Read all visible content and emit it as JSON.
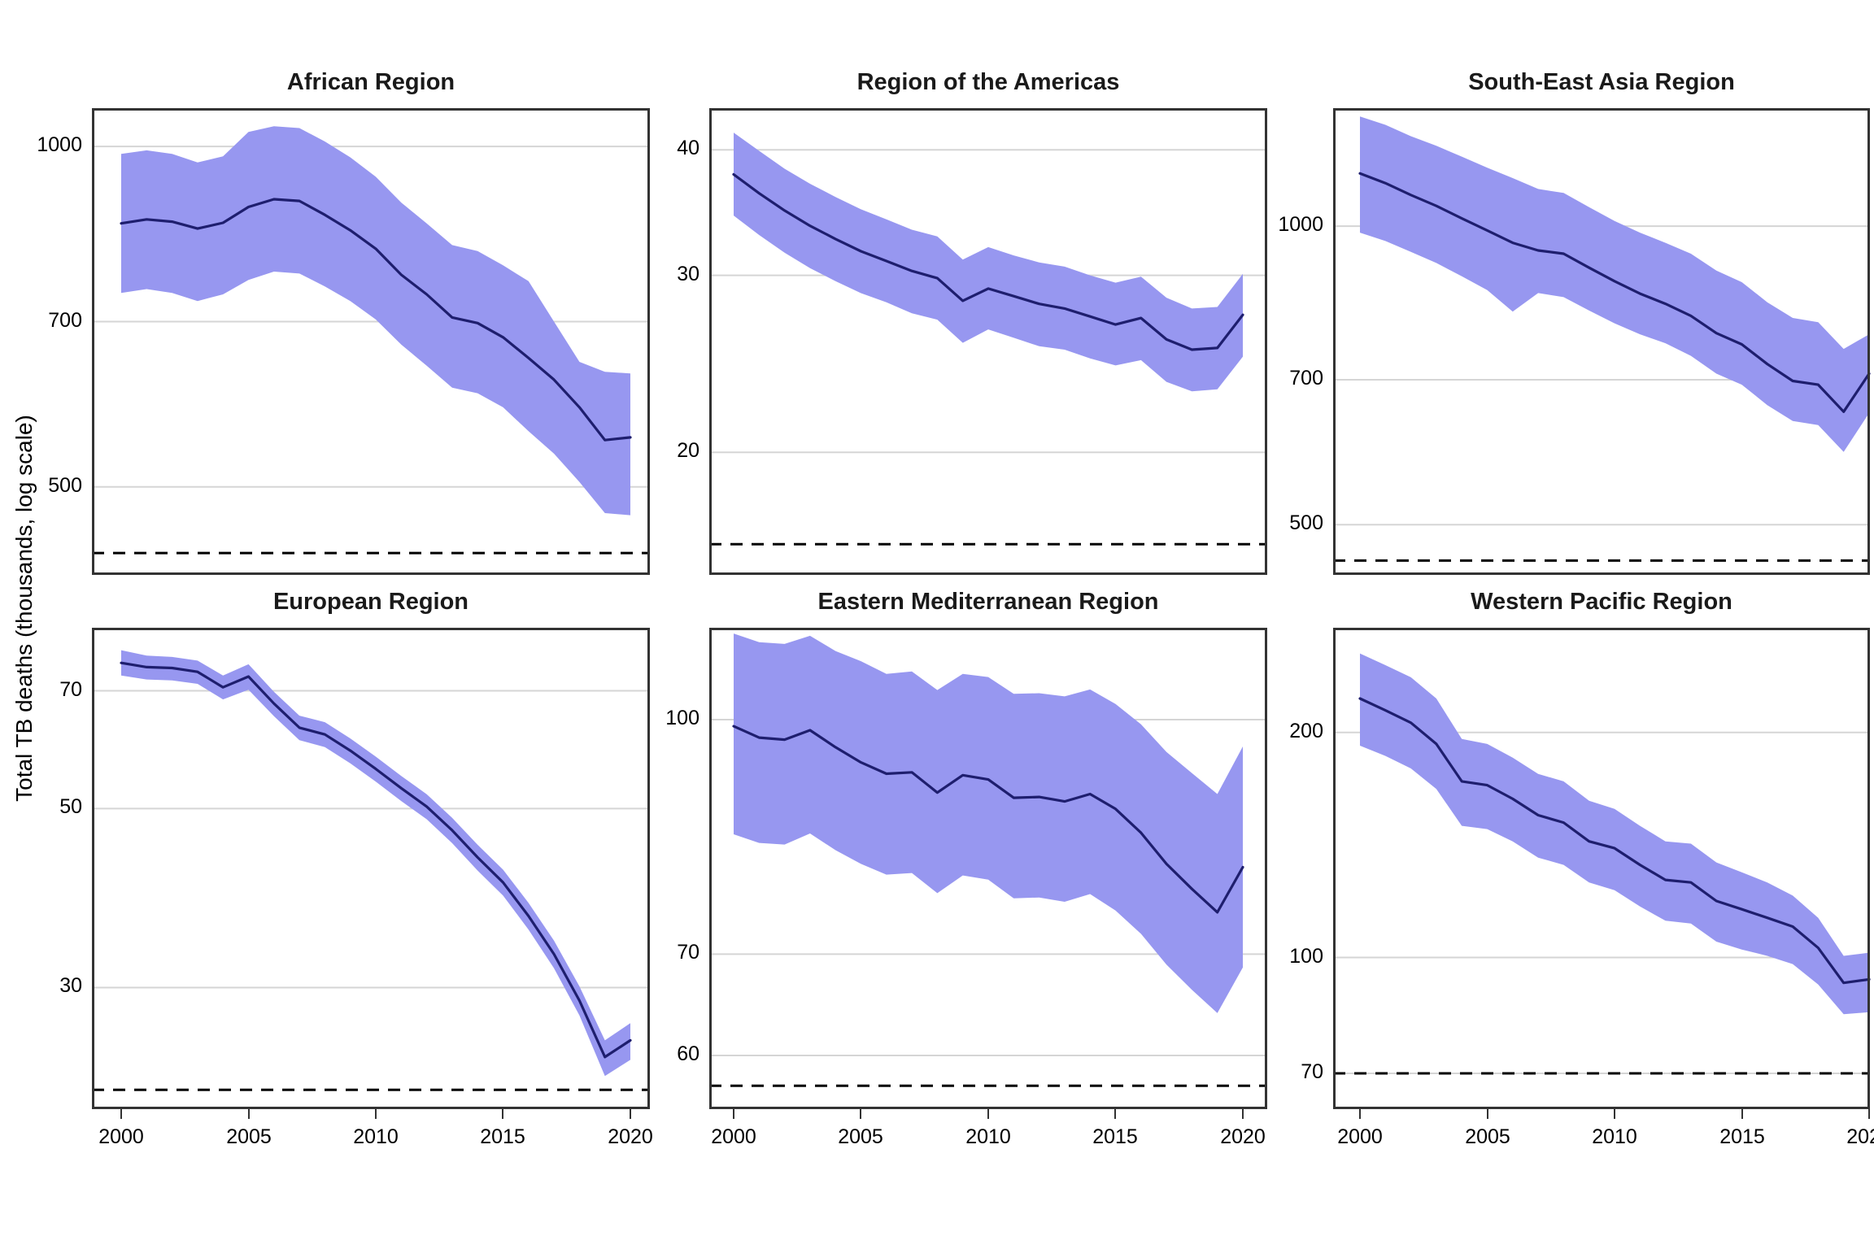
{
  "figure": {
    "y_axis_label": "Total TB deaths (thousands, log scale)",
    "x_tick_labels": [
      "2000",
      "2005",
      "2010",
      "2015",
      "2020"
    ],
    "colors": {
      "ribbon": "#9797F0",
      "line": "#1E1E6E",
      "gridline": "#D5D5D5",
      "panel_border": "#333333",
      "dashed_milestone": "#000000",
      "background": "#FFFFFF",
      "text": "#000000"
    }
  },
  "chart_data": [
    {
      "type": "line",
      "title": "African Region",
      "ylabel": "Total TB deaths (thousands, log scale)",
      "x": [
        2000,
        2001,
        2002,
        2003,
        2004,
        2005,
        2006,
        2007,
        2008,
        2009,
        2010,
        2011,
        2012,
        2013,
        2014,
        2015,
        2016,
        2017,
        2018,
        2019,
        2020
      ],
      "values": [
        855,
        862,
        858,
        846,
        856,
        884,
        898,
        895,
        870,
        843,
        812,
        770,
        740,
        706,
        698,
        678,
        650,
        622,
        588,
        550,
        553
      ],
      "ci_upper": [
        985,
        992,
        985,
        968,
        980,
        1030,
        1042,
        1038,
        1010,
        978,
        940,
        892,
        855,
        818,
        808,
        785,
        760,
        700,
        645,
        632,
        630
      ],
      "ci_lower": [
        742,
        748,
        742,
        730,
        740,
        762,
        775,
        772,
        752,
        730,
        703,
        668,
        640,
        612,
        605,
        588,
        560,
        535,
        505,
        474,
        472
      ],
      "dashed_milestone_value": 437,
      "y_domain": [
        418,
        1081
      ],
      "y_gridlines": [
        {
          "value": 1000,
          "label": "1000"
        },
        {
          "value": 700,
          "label": "700"
        },
        {
          "value": 500,
          "label": "500"
        }
      ],
      "grid": true,
      "legend": "none"
    },
    {
      "type": "line",
      "title": "Region of the Americas",
      "ylabel": "Total TB deaths (thousands, log scale)",
      "x": [
        2000,
        2001,
        2002,
        2003,
        2004,
        2005,
        2006,
        2007,
        2008,
        2009,
        2010,
        2011,
        2012,
        2013,
        2014,
        2015,
        2016,
        2017,
        2018,
        2019,
        2020
      ],
      "values": [
        37.8,
        36.2,
        34.8,
        33.6,
        32.6,
        31.7,
        31.0,
        30.3,
        29.8,
        28.3,
        29.1,
        28.6,
        28.1,
        27.8,
        27.3,
        26.8,
        27.2,
        25.9,
        25.3,
        25.4,
        27.4
      ],
      "ci_upper": [
        41.6,
        39.9,
        38.3,
        37.0,
        35.9,
        34.9,
        34.1,
        33.3,
        32.8,
        31.1,
        32.0,
        31.4,
        30.9,
        30.6,
        30.0,
        29.5,
        29.9,
        28.5,
        27.8,
        27.9,
        30.1
      ],
      "ci_lower": [
        34.4,
        32.9,
        31.6,
        30.5,
        29.6,
        28.8,
        28.2,
        27.5,
        27.1,
        25.7,
        26.5,
        26.0,
        25.5,
        25.3,
        24.8,
        24.4,
        24.7,
        23.5,
        23.0,
        23.1,
        24.9
      ],
      "dashed_milestone_value": 16.2,
      "y_domain": [
        15.1,
        44.0
      ],
      "y_gridlines": [
        {
          "value": 40,
          "label": "40"
        },
        {
          "value": 30,
          "label": "30"
        },
        {
          "value": 20,
          "label": "20"
        }
      ],
      "grid": true,
      "legend": "none"
    },
    {
      "type": "line",
      "title": "South-East Asia Region",
      "ylabel": "Total TB deaths (thousands, log scale)",
      "x": [
        2000,
        2001,
        2002,
        2003,
        2004,
        2005,
        2006,
        2007,
        2008,
        2009,
        2010,
        2011,
        2012,
        2013,
        2014,
        2015,
        2016,
        2017,
        2018,
        2019,
        2020
      ],
      "values": [
        1130,
        1105,
        1075,
        1048,
        1018,
        990,
        962,
        945,
        938,
        908,
        880,
        855,
        835,
        812,
        780,
        760,
        726,
        698,
        692,
        650,
        710
      ],
      "ci_upper": [
        1290,
        1265,
        1232,
        1205,
        1175,
        1145,
        1118,
        1090,
        1080,
        1045,
        1012,
        985,
        962,
        938,
        902,
        878,
        838,
        808,
        800,
        752,
        778
      ],
      "ci_lower": [
        985,
        966,
        942,
        918,
        890,
        862,
        820,
        856,
        848,
        822,
        798,
        778,
        762,
        740,
        710,
        692,
        660,
        636,
        630,
        592,
        648
      ],
      "dashed_milestone_value": 460,
      "y_domain": [
        445,
        1315
      ],
      "y_gridlines": [
        {
          "value": 1000,
          "label": "1000"
        },
        {
          "value": 700,
          "label": "700"
        },
        {
          "value": 500,
          "label": "500"
        }
      ],
      "grid": true,
      "legend": "none"
    },
    {
      "type": "line",
      "title": "European Region",
      "ylabel": "Total TB deaths (thousands, log scale)",
      "x": [
        2000,
        2001,
        2002,
        2003,
        2004,
        2005,
        2006,
        2007,
        2008,
        2009,
        2010,
        2011,
        2012,
        2013,
        2014,
        2015,
        2016,
        2017,
        2018,
        2019,
        2020
      ],
      "values": [
        75.8,
        74.9,
        74.7,
        73.9,
        70.7,
        72.9,
        67.5,
        63.0,
        61.8,
        59.0,
        56.0,
        53.0,
        50.3,
        47.0,
        43.5,
        40.5,
        36.8,
        33.0,
        28.9,
        24.6,
        25.8
      ],
      "ci_upper": [
        78.6,
        77.4,
        77.1,
        76.3,
        73.1,
        75.5,
        69.8,
        65.2,
        64.0,
        61.1,
        58.0,
        54.9,
        52.1,
        48.7,
        45.1,
        42.0,
        38.2,
        34.3,
        30.1,
        25.8,
        27.1
      ],
      "ci_lower": [
        73.1,
        72.3,
        72.1,
        71.4,
        68.3,
        70.2,
        65.1,
        60.8,
        59.6,
        56.9,
        54.0,
        51.1,
        48.5,
        45.3,
        41.9,
        39.0,
        35.4,
        31.7,
        27.7,
        23.3,
        24.4
      ],
      "dashed_milestone_value": 22.4,
      "y_domain": [
        21.2,
        83.8
      ],
      "y_gridlines": [
        {
          "value": 70,
          "label": "70"
        },
        {
          "value": 50,
          "label": "50"
        },
        {
          "value": 30,
          "label": "30"
        }
      ],
      "grid": true,
      "legend": "none"
    },
    {
      "type": "line",
      "title": "Eastern Mediterranean Region",
      "ylabel": "Total TB deaths (thousands, log scale)",
      "x": [
        2000,
        2001,
        2002,
        2003,
        2004,
        2005,
        2006,
        2007,
        2008,
        2009,
        2010,
        2011,
        2012,
        2013,
        2014,
        2015,
        2016,
        2017,
        2018,
        2019,
        2020
      ],
      "values": [
        99.0,
        97.3,
        97.0,
        98.4,
        95.9,
        93.7,
        92.1,
        92.3,
        89.5,
        91.9,
        91.3,
        88.8,
        88.9,
        88.3,
        89.3,
        87.3,
        84.2,
        80.3,
        77.3,
        74.6,
        79.9
      ],
      "ci_upper": [
        114,
        112.5,
        112.2,
        113.6,
        111.0,
        109.3,
        107.2,
        107.6,
        104.6,
        107.2,
        106.7,
        104.0,
        104.1,
        103.6,
        104.7,
        102.4,
        99.3,
        95.2,
        92.2,
        89.3,
        96.0
      ],
      "ci_lower": [
        84.0,
        82.9,
        82.7,
        84.1,
        82.0,
        80.3,
        79.0,
        79.2,
        76.8,
        78.9,
        78.4,
        76.2,
        76.3,
        75.8,
        76.7,
        74.8,
        72.2,
        68.9,
        66.3,
        64.0,
        68.6
      ],
      "dashed_milestone_value": 57.3,
      "y_domain": [
        55.3,
        115
      ],
      "y_gridlines": [
        {
          "value": 100,
          "label": "100"
        },
        {
          "value": 70,
          "label": "70"
        },
        {
          "value": 60,
          "label": "60"
        }
      ],
      "grid": true,
      "legend": "none"
    },
    {
      "type": "line",
      "title": "Western Pacific Region",
      "ylabel": "Total TB deaths (thousands, log scale)",
      "x": [
        2000,
        2001,
        2002,
        2003,
        2004,
        2005,
        2006,
        2007,
        2008,
        2009,
        2010,
        2011,
        2012,
        2013,
        2014,
        2015,
        2016,
        2017,
        2018,
        2019,
        2020
      ],
      "values": [
        222,
        214,
        206,
        193,
        172,
        170,
        163,
        155,
        151.5,
        143,
        140,
        133,
        127,
        126,
        119,
        116,
        113,
        110,
        103,
        92.5,
        93.5
      ],
      "ci_upper": [
        255,
        246,
        237,
        222,
        196,
        193,
        185,
        176,
        172,
        162,
        158,
        150,
        143,
        142,
        134,
        130,
        126,
        121,
        113,
        100.5,
        101.5
      ],
      "ci_lower": [
        192,
        186,
        179,
        168,
        150,
        148.5,
        143,
        136,
        133,
        126,
        123,
        117,
        112,
        111,
        105,
        102.5,
        100.5,
        98,
        92,
        84,
        84.5
      ],
      "dashed_milestone_value": 70,
      "y_domain": [
        62.7,
        276
      ],
      "y_gridlines": [
        {
          "value": 200,
          "label": "200"
        },
        {
          "value": 100,
          "label": "100"
        },
        {
          "value": 70,
          "label": "70"
        }
      ],
      "grid": true,
      "legend": "none"
    }
  ]
}
